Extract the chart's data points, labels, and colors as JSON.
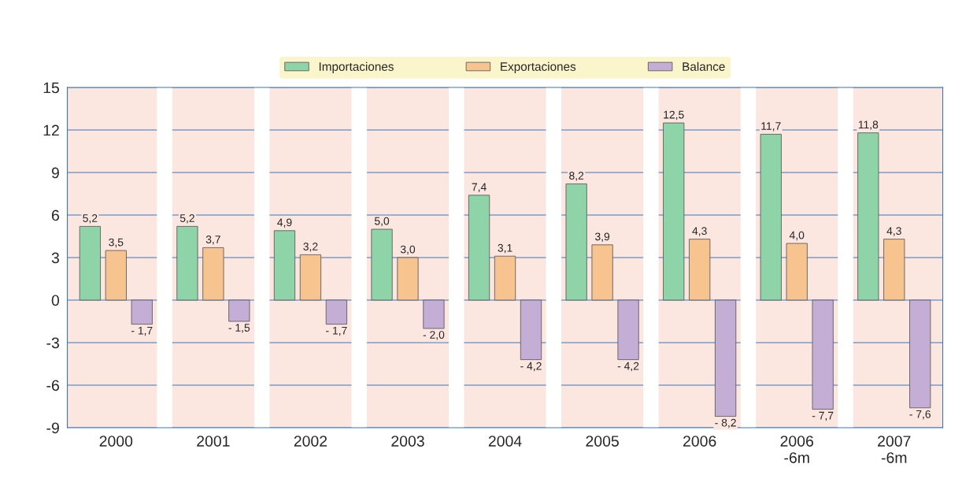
{
  "chart_data": {
    "type": "bar",
    "categories": [
      "2000",
      "2001",
      "2002",
      "2003",
      "2004",
      "2005",
      "2006",
      "2006\n-6m",
      "2007\n-6m"
    ],
    "series": [
      {
        "name": "Importaciones",
        "color": "#8fd4a8",
        "values": [
          5.2,
          5.2,
          4.9,
          5.0,
          7.4,
          8.2,
          12.5,
          11.7,
          11.8
        ],
        "value_labels": [
          "5,2",
          "5,2",
          "4,9",
          "5,0",
          "7,4",
          "8,2",
          "12,5",
          "11,7",
          "11,8"
        ]
      },
      {
        "name": "Exportaciones",
        "color": "#f7c48f",
        "values": [
          3.5,
          3.7,
          3.2,
          3.0,
          3.1,
          3.9,
          4.3,
          4.0,
          4.3
        ],
        "value_labels": [
          "3,5",
          "3,7",
          "3,2",
          "3,0",
          "3,1",
          "3,9",
          "4,3",
          "4,0",
          "4,3"
        ]
      },
      {
        "name": "Balance",
        "color": "#c4aed6",
        "values": [
          -1.7,
          -1.5,
          -1.7,
          -2.0,
          -4.2,
          -4.2,
          -8.2,
          -7.7,
          -7.6
        ],
        "value_labels": [
          "- 1,7",
          "- 1,5",
          "- 1,7",
          "- 2,0",
          "- 4,2",
          "- 4,2",
          "- 8,2",
          "- 7,7",
          "- 7,6"
        ]
      }
    ],
    "ylim": [
      -9,
      15
    ],
    "yticks": [
      -9,
      -6,
      -3,
      0,
      3,
      6,
      9,
      12,
      15
    ],
    "grid": "y",
    "legend": "top"
  }
}
